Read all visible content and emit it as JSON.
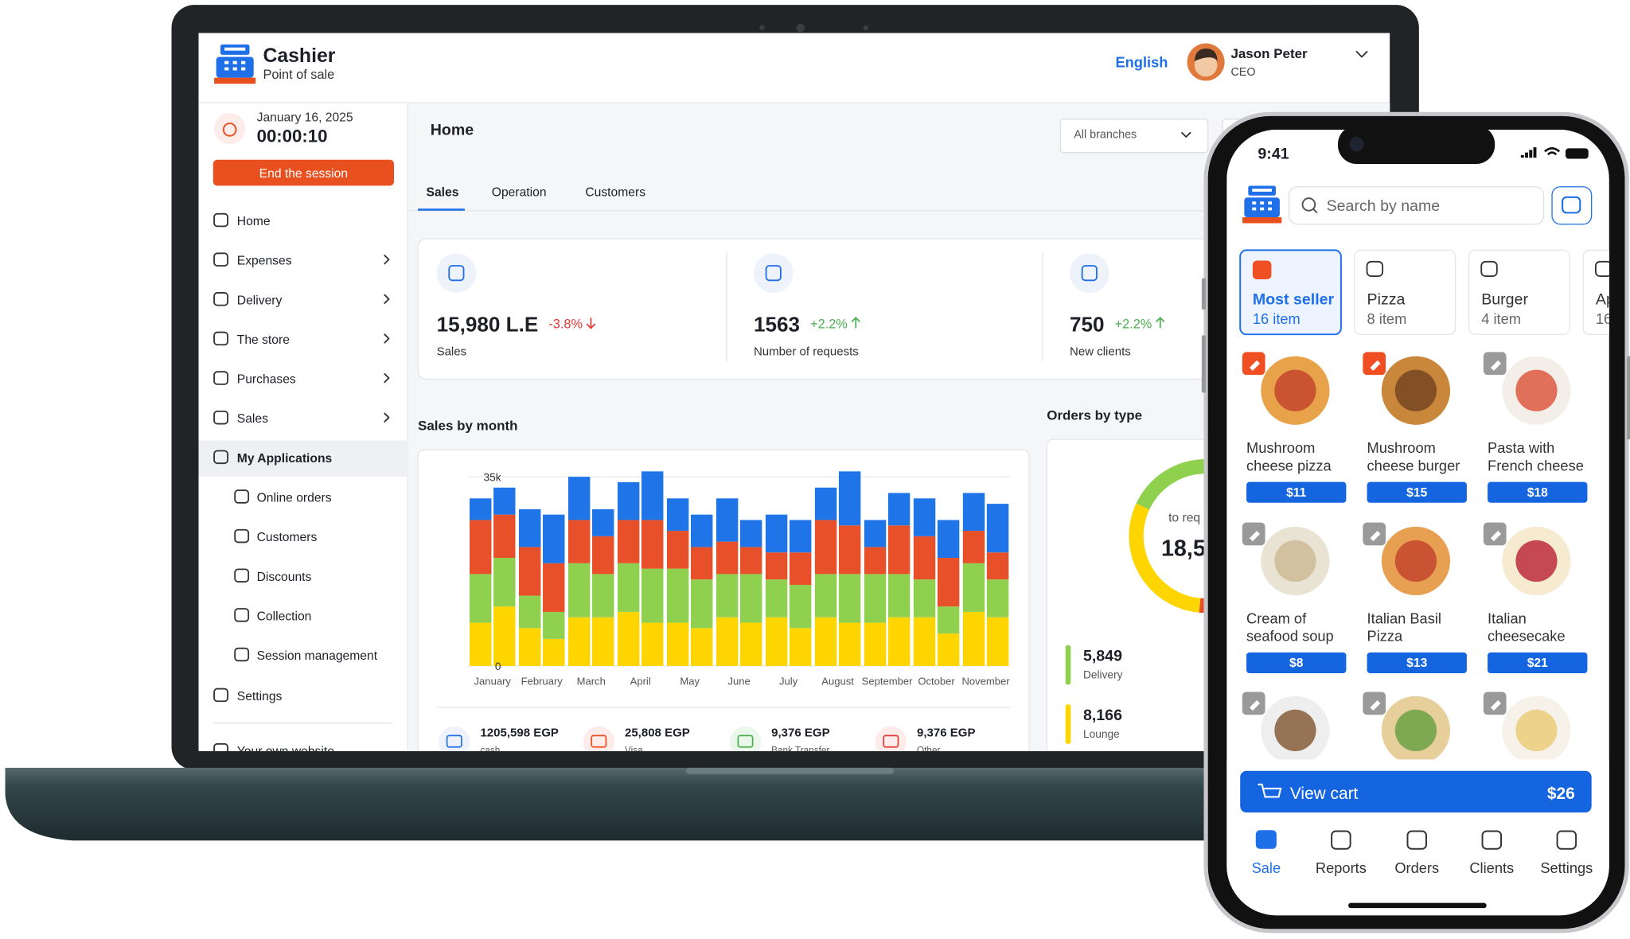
{
  "laptop": {
    "brand": {
      "name": "Cashier",
      "tagline": "Point of sale"
    },
    "language": "English",
    "user": {
      "name": "Jason Peter",
      "role": "CEO"
    },
    "session": {
      "date": "January 16, 2025",
      "timer": "00:00:10",
      "button": "End the session"
    },
    "nav": [
      {
        "label": "Home"
      },
      {
        "label": "Expenses"
      },
      {
        "label": "Delivery"
      },
      {
        "label": "The store"
      },
      {
        "label": "Purchases"
      },
      {
        "label": "Sales"
      },
      {
        "label": "My Applications",
        "children": [
          "Online orders",
          "Customers",
          "Discounts",
          "Collection",
          "Session management"
        ]
      },
      {
        "label": "Settings"
      },
      {
        "label": "Your own website"
      }
    ],
    "page_title": "Home",
    "branch_filter": "All branches",
    "tabs": [
      "Sales",
      "Operation",
      "Customers"
    ],
    "stats": [
      {
        "value": "15,980 L.E",
        "change": "-3.8%",
        "label": "Sales"
      },
      {
        "value": "1563",
        "change": "+2.2%",
        "label": "Number of requests"
      },
      {
        "value": "750",
        "change": "+2.2%",
        "label": "New clients"
      }
    ],
    "payments": [
      {
        "amount": "1205,598 EGP",
        "method": "cash"
      },
      {
        "amount": "25,808 EGP",
        "method": "Visa"
      },
      {
        "amount": "9,376 EGP",
        "method": "Bank Transfer"
      },
      {
        "amount": "9,376 EGP",
        "method": "Other"
      }
    ],
    "orders_by_type": {
      "title": "Orders by type",
      "center_label": "to req",
      "center_value": "18,5",
      "items": [
        {
          "value": "5,849",
          "label": "Delivery",
          "color": "#8fd14f"
        },
        {
          "value": "8,166",
          "label": "Lounge",
          "color": "#ffd500"
        }
      ]
    }
  },
  "chart_data": {
    "type": "bar",
    "title": "Sales by month",
    "categories": [
      "January",
      "February",
      "March",
      "April",
      "May",
      "June",
      "July",
      "August",
      "September",
      "October",
      "November"
    ],
    "ylim": [
      0,
      37000
    ],
    "yticks": [
      0,
      {
        "value": 35000,
        "label": "35k"
      }
    ],
    "grid": true,
    "series": [
      {
        "stack": 0,
        "color": "#ffd500",
        "values": [
          8000,
          7000,
          9000,
          10000,
          8000,
          9000,
          9000,
          9000,
          8000,
          9000,
          10000
        ]
      },
      {
        "stack": 0,
        "color": "#8fd14f",
        "values": [
          9000,
          6000,
          10000,
          9000,
          10000,
          8000,
          7000,
          8000,
          9000,
          7000,
          9000
        ]
      },
      {
        "stack": 0,
        "color": "#e8502a",
        "values": [
          10000,
          9000,
          8000,
          8000,
          7000,
          6000,
          5000,
          10000,
          5000,
          8000,
          6000
        ]
      },
      {
        "stack": 0,
        "color": "#1f75e8",
        "values": [
          4000,
          7000,
          8000,
          7000,
          6000,
          8000,
          7000,
          6000,
          5000,
          7000,
          7000
        ]
      },
      {
        "stack": 1,
        "color": "#ffd500",
        "values": [
          11000,
          5000,
          9000,
          8000,
          7000,
          8000,
          7000,
          8000,
          9000,
          6000,
          9000
        ]
      },
      {
        "stack": 1,
        "color": "#8fd14f",
        "values": [
          9000,
          5000,
          8000,
          10000,
          9000,
          9000,
          8000,
          9000,
          8000,
          5000,
          7000
        ]
      },
      {
        "stack": 1,
        "color": "#e8502a",
        "values": [
          8000,
          9000,
          7000,
          9000,
          6000,
          5000,
          6000,
          9000,
          9000,
          9000,
          5000
        ]
      },
      {
        "stack": 1,
        "color": "#1f75e8",
        "values": [
          5000,
          9000,
          5000,
          9000,
          6000,
          5000,
          6000,
          10000,
          6000,
          7000,
          9000
        ]
      }
    ]
  },
  "phone": {
    "time": "9:41",
    "search_placeholder": "Search by name",
    "categories": [
      {
        "name": "Most seller",
        "count": "16 item"
      },
      {
        "name": "Pizza",
        "count": "8 item"
      },
      {
        "name": "Burger",
        "count": "4 item"
      },
      {
        "name": "Ap",
        "count": "16"
      }
    ],
    "products": [
      {
        "name_lines": [
          "Mushroom",
          "cheese pizza"
        ],
        "price": "$11"
      },
      {
        "name_lines": [
          "Mushroom",
          "cheese burger"
        ],
        "price": "$15"
      },
      {
        "name_lines": [
          "Pasta with",
          "French cheese"
        ],
        "price": "$18"
      },
      {
        "name_lines": [
          "Cream of",
          "seafood soup"
        ],
        "price": "$8"
      },
      {
        "name_lines": [
          "Italian Basil",
          "Pizza"
        ],
        "price": "$13"
      },
      {
        "name_lines": [
          "Italian",
          "cheesecake"
        ],
        "price": "$21"
      }
    ],
    "cart": {
      "label": "View cart",
      "total": "$26"
    },
    "tabs": [
      "Sale",
      "Reports",
      "Orders",
      "Clients",
      "Settings"
    ]
  }
}
